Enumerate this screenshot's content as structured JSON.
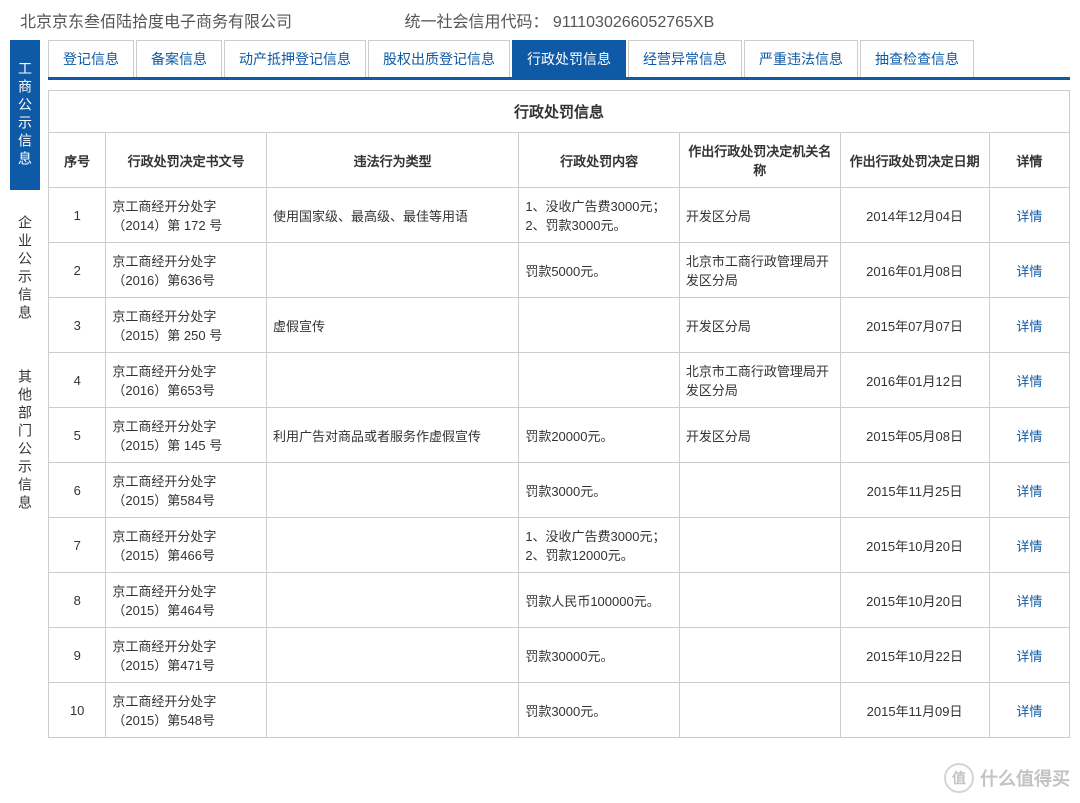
{
  "header": {
    "company": "北京京东叁佰陆拾度电子商务有限公司",
    "code_label": "统一社会信用代码：",
    "code_value": "9111030266052765XB"
  },
  "sidebar": {
    "items": [
      {
        "label": "工商公示信息",
        "active": true
      },
      {
        "label": "企业公示信息",
        "active": false
      },
      {
        "label": "其他部门公示信息",
        "active": false
      }
    ]
  },
  "tabs": {
    "items": [
      {
        "label": "登记信息",
        "active": false
      },
      {
        "label": "备案信息",
        "active": false
      },
      {
        "label": "动产抵押登记信息",
        "active": false
      },
      {
        "label": "股权出质登记信息",
        "active": false
      },
      {
        "label": "行政处罚信息",
        "active": true
      },
      {
        "label": "经营异常信息",
        "active": false
      },
      {
        "label": "严重违法信息",
        "active": false
      },
      {
        "label": "抽查检查信息",
        "active": false
      }
    ]
  },
  "table": {
    "title": "行政处罚信息",
    "columns": [
      "序号",
      "行政处罚决定书文号",
      "违法行为类型",
      "行政处罚内容",
      "作出行政处罚决定机关名称",
      "作出行政处罚决定日期",
      "详情"
    ],
    "detail_label": "详情",
    "rows": [
      {
        "no": "1",
        "doc": "京工商经开分处字（2014）第 172 号",
        "type": "使用国家级、最高级、最佳等用语",
        "content": "1、没收广告费3000元； 2、罚款3000元。",
        "org": "开发区分局",
        "date": "2014年12月04日"
      },
      {
        "no": "2",
        "doc": "京工商经开分处字（2016）第636号",
        "type": "",
        "content": "罚款5000元。",
        "org": "北京市工商行政管理局开发区分局",
        "date": "2016年01月08日"
      },
      {
        "no": "3",
        "doc": "京工商经开分处字（2015）第 250 号",
        "type": "虚假宣传",
        "content": "",
        "org": "开发区分局",
        "date": "2015年07月07日"
      },
      {
        "no": "4",
        "doc": "京工商经开分处字（2016）第653号",
        "type": "",
        "content": "",
        "org": "北京市工商行政管理局开发区分局",
        "date": "2016年01月12日"
      },
      {
        "no": "5",
        "doc": "京工商经开分处字（2015）第 145 号",
        "type": "利用广告对商品或者服务作虚假宣传",
        "content": "罚款20000元。",
        "org": "开发区分局",
        "date": "2015年05月08日"
      },
      {
        "no": "6",
        "doc": "京工商经开分处字（2015）第584号",
        "type": "",
        "content": "罚款3000元。",
        "org": "",
        "date": "2015年11月25日"
      },
      {
        "no": "7",
        "doc": "京工商经开分处字（2015）第466号",
        "type": "",
        "content": "1、没收广告费3000元； 2、罚款12000元。",
        "org": "",
        "date": "2015年10月20日"
      },
      {
        "no": "8",
        "doc": "京工商经开分处字（2015）第464号",
        "type": "",
        "content": "罚款人民币100000元。",
        "org": "",
        "date": "2015年10月20日"
      },
      {
        "no": "9",
        "doc": "京工商经开分处字（2015）第471号",
        "type": "",
        "content": "罚款30000元。",
        "org": "",
        "date": "2015年10月22日"
      },
      {
        "no": "10",
        "doc": "京工商经开分处字（2015）第548号",
        "type": "",
        "content": "罚款3000元。",
        "org": "",
        "date": "2015年11月09日"
      }
    ]
  },
  "watermark": {
    "icon": "值",
    "text": "什么值得买"
  },
  "col_widths": [
    "50px",
    "140px",
    "220px",
    "140px",
    "140px",
    "130px",
    "70px"
  ]
}
